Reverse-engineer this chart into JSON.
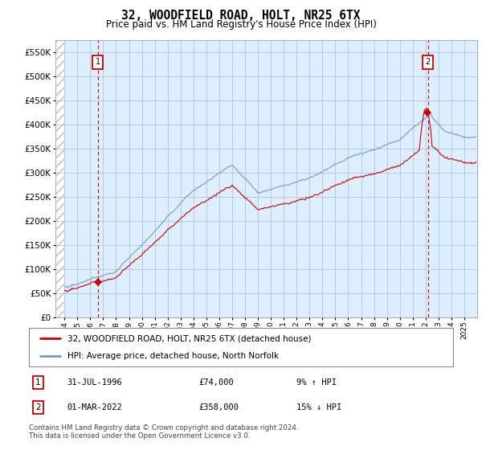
{
  "title": "32, WOODFIELD ROAD, HOLT, NR25 6TX",
  "subtitle": "Price paid vs. HM Land Registry's House Price Index (HPI)",
  "legend_label1": "32, WOODFIELD ROAD, HOLT, NR25 6TX (detached house)",
  "legend_label2": "HPI: Average price, detached house, North Norfolk",
  "annotation1_date": "31-JUL-1996",
  "annotation1_price": "£74,000",
  "annotation1_hpi": "9% ↑ HPI",
  "annotation2_date": "01-MAR-2022",
  "annotation2_price": "£358,000",
  "annotation2_hpi": "15% ↓ HPI",
  "footnote": "Contains HM Land Registry data © Crown copyright and database right 2024.\nThis data is licensed under the Open Government Licence v3.0.",
  "red_color": "#cc0000",
  "blue_color": "#7799cc",
  "grid_color": "#aabbdd",
  "bg_color": "#ddeeff",
  "ylim": [
    0,
    575000
  ],
  "yticks": [
    0,
    50000,
    100000,
    150000,
    200000,
    250000,
    300000,
    350000,
    400000,
    450000,
    500000,
    550000
  ],
  "xlabel_years": [
    "1994",
    "1995",
    "1996",
    "1997",
    "1998",
    "1999",
    "2000",
    "2001",
    "2002",
    "2003",
    "2004",
    "2005",
    "2006",
    "2007",
    "2008",
    "2009",
    "2010",
    "2011",
    "2012",
    "2013",
    "2014",
    "2015",
    "2016",
    "2017",
    "2018",
    "2019",
    "2020",
    "2021",
    "2022",
    "2023",
    "2024",
    "2025"
  ],
  "vline1_year": 1996.58,
  "vline2_year": 2022.17,
  "sale1_value": 74000,
  "sale2_value": 358000
}
